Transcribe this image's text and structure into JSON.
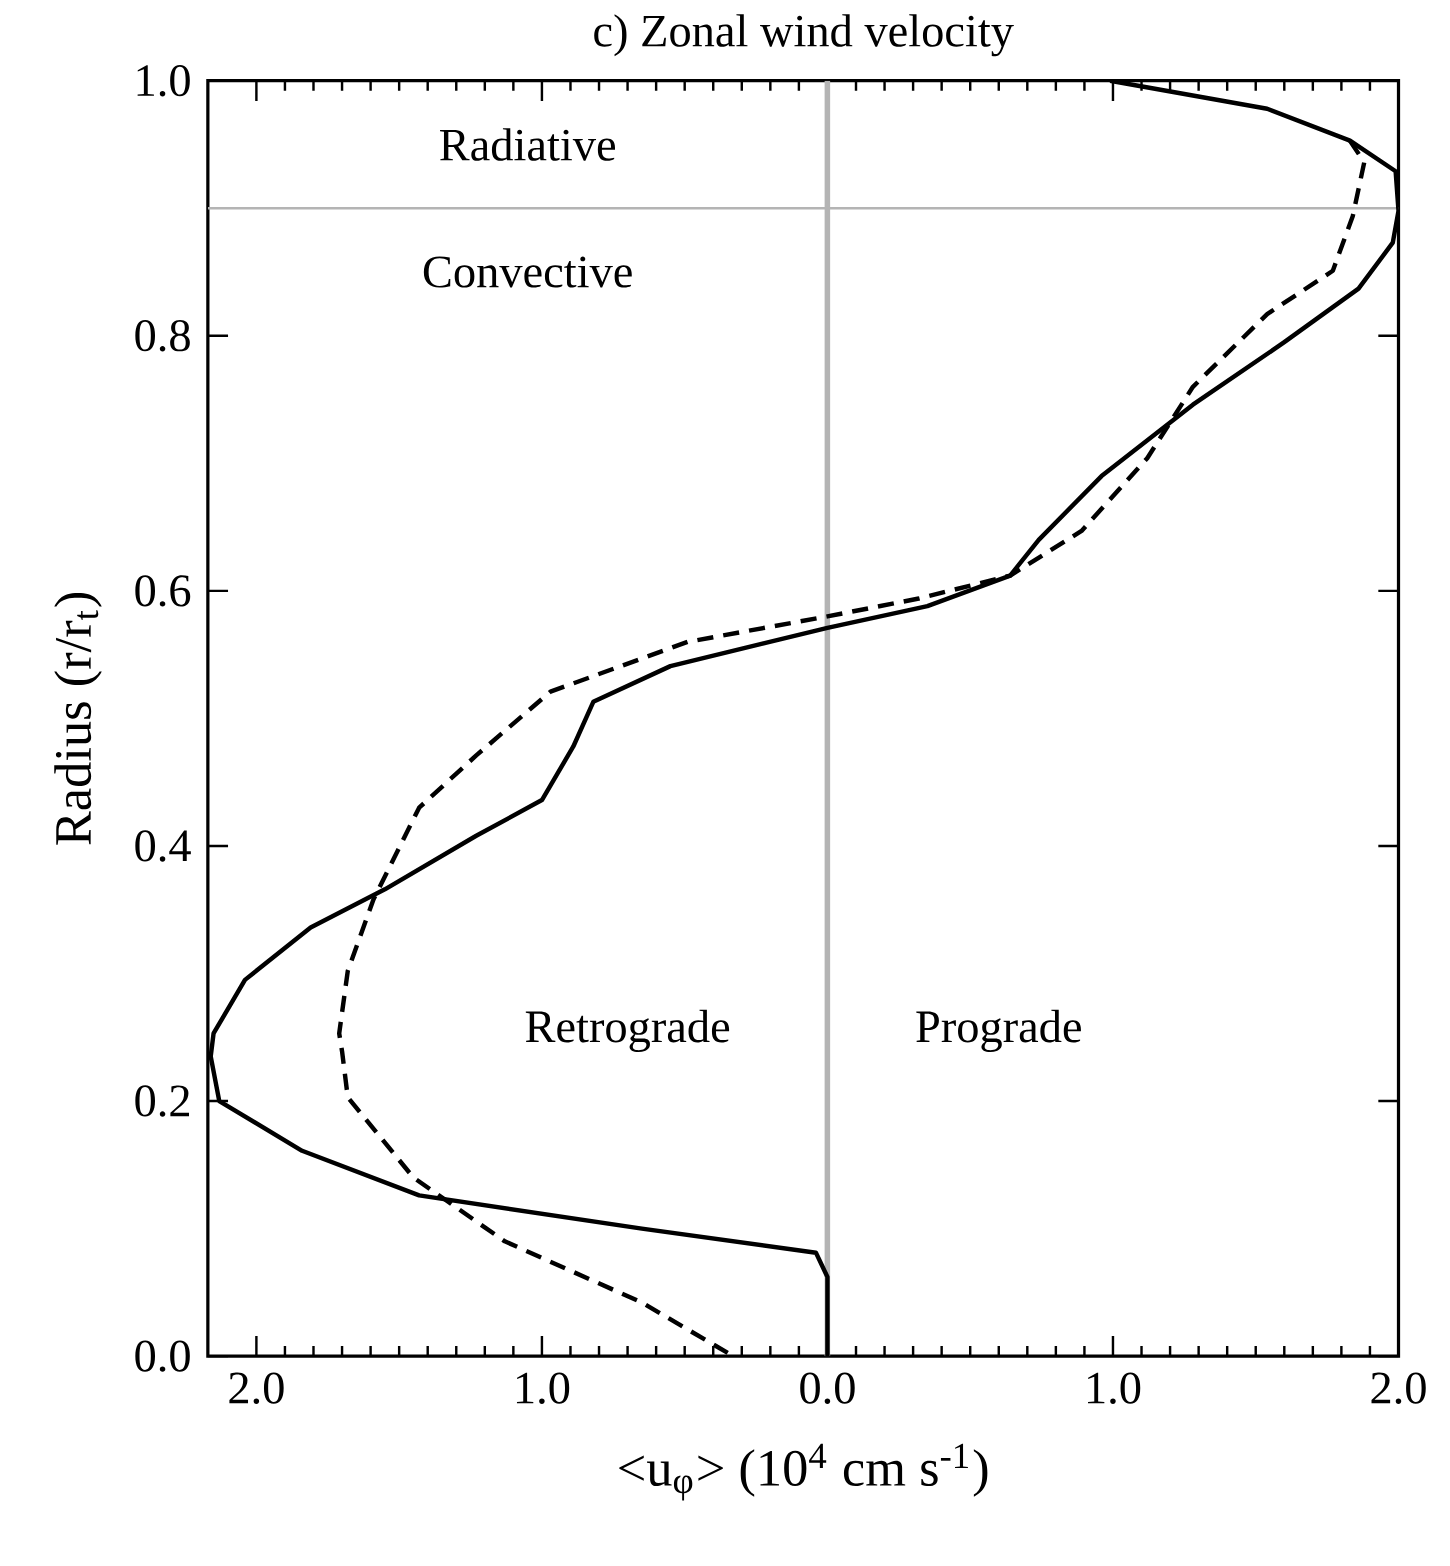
{
  "chart_data": {
    "type": "line",
    "title": "c) Zonal wind velocity",
    "xlabel": "<u$_{φ}$> (10$^{4}$ cm s$^{-1}$)",
    "ylabel": "Radius (r/r$_{t}$)",
    "series": [
      {
        "color": "#000000",
        "line_style": "solid",
        "x": [
          0.99,
          1.54,
          1.83,
          1.99,
          2.0,
          1.98,
          1.86,
          1.6,
          1.28,
          0.96,
          0.74,
          0.64,
          0.35,
          0.0,
          -0.55,
          -0.82,
          -0.89,
          -1.0,
          -1.23,
          -1.55,
          -1.81,
          -2.04,
          -2.15,
          -2.16,
          -2.13,
          -1.84,
          -1.43,
          -0.65,
          -0.04,
          0.0,
          0.0
        ],
        "values": [
          1.0,
          0.978,
          0.953,
          0.929,
          0.898,
          0.873,
          0.837,
          0.795,
          0.746,
          0.69,
          0.64,
          0.612,
          0.588,
          0.571,
          0.541,
          0.513,
          0.478,
          0.436,
          0.408,
          0.366,
          0.336,
          0.295,
          0.253,
          0.235,
          0.2,
          0.161,
          0.126,
          0.1,
          0.081,
          0.062,
          0.0
        ]
      },
      {
        "color": "#000000",
        "line_style": "dashed",
        "x": [
          1.83,
          1.88,
          1.84,
          1.77,
          1.54,
          1.28,
          1.12,
          0.89,
          0.64,
          0.32,
          0.0,
          -0.49,
          -0.97,
          -1.23,
          -1.43,
          -1.59,
          -1.68,
          -1.71,
          -1.7,
          -1.68,
          -1.45,
          -1.13,
          -0.65,
          -0.33
        ],
        "values": [
          0.953,
          0.936,
          0.894,
          0.851,
          0.817,
          0.76,
          0.704,
          0.647,
          0.612,
          0.594,
          0.58,
          0.56,
          0.521,
          0.471,
          0.43,
          0.358,
          0.302,
          0.253,
          0.239,
          0.203,
          0.14,
          0.09,
          0.042,
          0.0
        ]
      }
    ],
    "xlim": [
      -2.17,
      2.0
    ],
    "xticks": [
      {
        "value": -2,
        "label": "2.0"
      },
      {
        "value": -1,
        "label": "1.0"
      },
      {
        "value": 0,
        "label": "0.0"
      },
      {
        "value": 1,
        "label": "1.0"
      },
      {
        "value": 2,
        "label": "2.0"
      }
    ],
    "ylim": [
      0,
      1
    ],
    "yticks": [
      {
        "value": 0,
        "label": "0.0"
      },
      {
        "value": 0.2,
        "label": "0.2"
      },
      {
        "value": 0.4,
        "label": "0.4"
      },
      {
        "value": 0.6,
        "label": "0.6"
      },
      {
        "value": 0.8,
        "label": "0.8"
      },
      {
        "value": 1,
        "label": "1.0"
      }
    ],
    "ref_lines": [
      {
        "axis": "y",
        "value": 0.9,
        "color": "#b4b4b4"
      },
      {
        "axis": "x",
        "value": 0,
        "color": "#b4b4b4"
      }
    ],
    "annotations": [
      "Radiative",
      "Convective",
      "Retrograde",
      "Prograde"
    ],
    "marker": "none"
  }
}
